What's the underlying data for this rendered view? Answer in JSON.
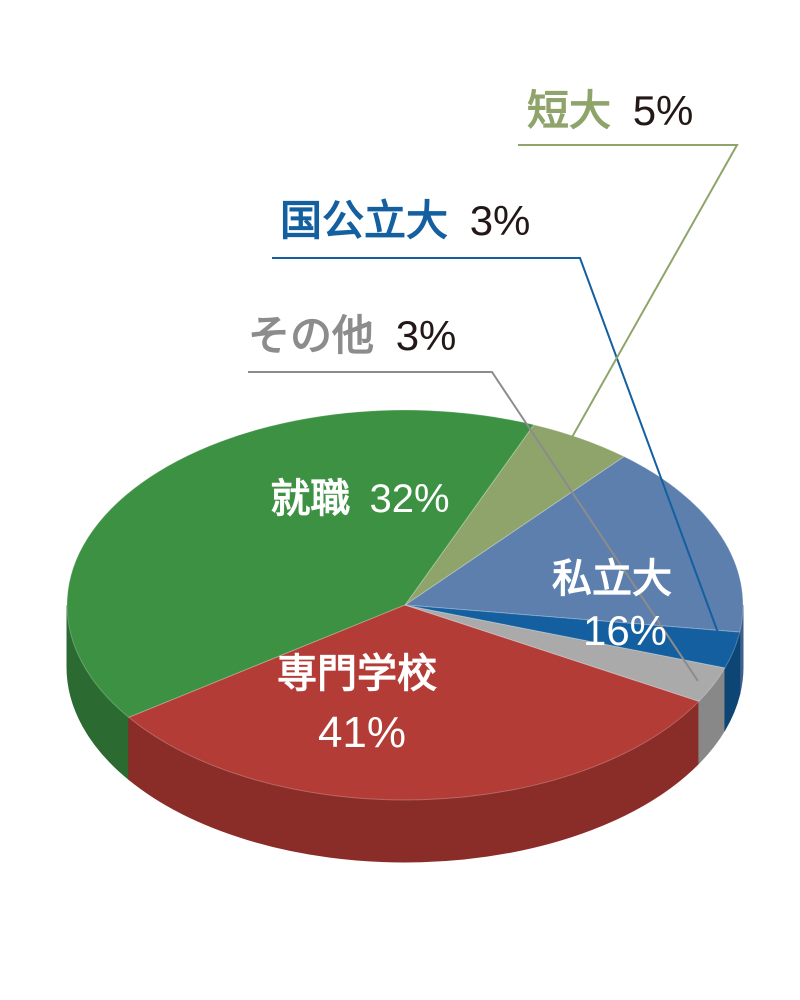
{
  "chart_data": {
    "type": "pie",
    "title": "",
    "slices": [
      {
        "name": "私立大",
        "value": 16,
        "label": "16%",
        "color": "#5d7fae",
        "side": "#3f5f8e"
      },
      {
        "name": "短大",
        "value": 5,
        "label": "5%",
        "color": "#8fa46b",
        "side": "#6f8550"
      },
      {
        "name": "専門学校",
        "value": 41,
        "label": "41%",
        "color": "#3c9142",
        "side": "#2b6a31"
      },
      {
        "name": "就職",
        "value": 32,
        "label": "32%",
        "color": "#b33c37",
        "side": "#8a2c28"
      },
      {
        "name": "その他",
        "value": 3,
        "label": "3%",
        "color": "#aaaaaa",
        "side": "#888888"
      },
      {
        "name": "国公立大",
        "value": 3,
        "label": "3%",
        "color": "#135fa0",
        "side": "#0d4575"
      }
    ],
    "legend_placement": "callouts"
  }
}
